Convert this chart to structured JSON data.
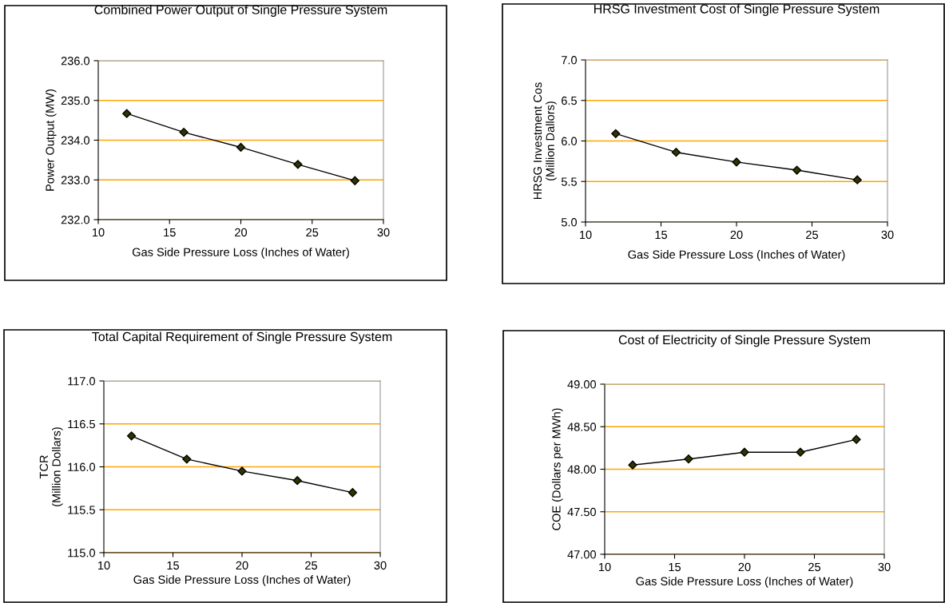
{
  "chart_data": [
    {
      "type": "line",
      "title": "Combined Power Output of Single Pressure System",
      "xlabel": "Gas Side Pressure Loss (Inches of Water)",
      "ylabel": "Power Output (MW)",
      "x": [
        12,
        16,
        20,
        24,
        28
      ],
      "series": [
        {
          "color": "#000000",
          "values": [
            234.67,
            234.2,
            233.82,
            233.39,
            232.98
          ]
        }
      ],
      "xlim": [
        10,
        30
      ],
      "xticks": [
        10,
        15,
        20,
        25,
        30
      ],
      "ylim": [
        232,
        236
      ],
      "yticks": [
        {
          "value": 232,
          "label": "232.0"
        },
        {
          "value": 233,
          "label": "233.0"
        },
        {
          "value": 234,
          "label": "234.0"
        },
        {
          "value": 235,
          "label": "235.0"
        },
        {
          "value": 236,
          "label": "236.0"
        }
      ],
      "grid": "y",
      "marker": "diamond",
      "line_style": "solid"
    },
    {
      "type": "line",
      "title": "HRSG Investment Cost of Single Pressure System",
      "xlabel": "Gas Side Pressure Loss (Inches of Water)",
      "ylabel": "HRSG Investment Cos\n(Million Dallors)",
      "x": [
        12,
        16,
        20,
        24,
        28
      ],
      "series": [
        {
          "color": "#000000",
          "values": [
            6.09,
            5.86,
            5.74,
            5.64,
            5.52
          ]
        }
      ],
      "xlim": [
        10,
        30
      ],
      "xticks": [
        10,
        15,
        20,
        25,
        30
      ],
      "ylim": [
        5,
        7
      ],
      "yticks": [
        {
          "value": 5,
          "label": "5.0"
        },
        {
          "value": 5.5,
          "label": "5.5"
        },
        {
          "value": 6,
          "label": "6.0"
        },
        {
          "value": 6.5,
          "label": "6.5"
        },
        {
          "value": 7,
          "label": "7.0"
        }
      ],
      "grid": "y",
      "marker": "diamond",
      "line_style": "solid"
    },
    {
      "type": "line",
      "title": "Total Capital Requirement of Single Pressure System",
      "xlabel": "Gas Side Pressure Loss (Inches of Water)",
      "ylabel": "TCR\n(Million Dollars)",
      "x": [
        12,
        16,
        20,
        24,
        28
      ],
      "series": [
        {
          "color": "#000000",
          "values": [
            116.36,
            116.09,
            115.95,
            115.84,
            115.7
          ]
        }
      ],
      "xlim": [
        10,
        30
      ],
      "xticks": [
        10,
        15,
        20,
        25,
        30
      ],
      "ylim": [
        115,
        117
      ],
      "yticks": [
        {
          "value": 115,
          "label": "115.0"
        },
        {
          "value": 115.5,
          "label": "115.5"
        },
        {
          "value": 116,
          "label": "116.0"
        },
        {
          "value": 116.5,
          "label": "116.5"
        },
        {
          "value": 117,
          "label": "117.0"
        }
      ],
      "grid": "y",
      "marker": "diamond",
      "line_style": "solid"
    },
    {
      "type": "line",
      "title": "Cost of Electricity of Single Pressure System",
      "xlabel": "Gas Side Pressure Loss (Inches of Water)",
      "ylabel": "COE (Dollars per MWh)",
      "x": [
        12,
        16,
        20,
        24,
        28
      ],
      "series": [
        {
          "color": "#000000",
          "values": [
            48.05,
            48.12,
            48.2,
            48.2,
            48.35
          ]
        }
      ],
      "xlim": [
        10,
        30
      ],
      "xticks": [
        10,
        15,
        20,
        25,
        30
      ],
      "ylim": [
        47,
        49
      ],
      "yticks": [
        {
          "value": 47,
          "label": "47.00"
        },
        {
          "value": 47.5,
          "label": "47.50"
        },
        {
          "value": 48,
          "label": "48.00"
        },
        {
          "value": 48.5,
          "label": "48.50"
        },
        {
          "value": 49,
          "label": "49.00"
        }
      ],
      "grid": "y",
      "marker": "diamond",
      "line_style": "solid"
    }
  ]
}
